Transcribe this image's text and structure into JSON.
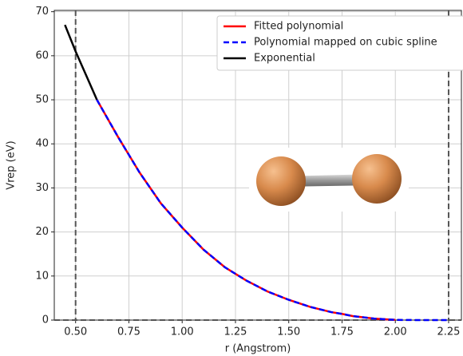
{
  "chart_data": {
    "type": "line",
    "x_label": "r (Angstrom)",
    "y_label": "Vrep (eV)",
    "xlim": [
      0.4,
      2.31
    ],
    "ylim": [
      0,
      70.3
    ],
    "xticks": [
      {
        "value": 0.5,
        "label": "0.50"
      },
      {
        "value": 0.75,
        "label": "0.75"
      },
      {
        "value": 1.0,
        "label": "1.00"
      },
      {
        "value": 1.25,
        "label": "1.25"
      },
      {
        "value": 1.5,
        "label": "1.50"
      },
      {
        "value": 1.75,
        "label": "1.75"
      },
      {
        "value": 2.0,
        "label": "2.00"
      },
      {
        "value": 2.25,
        "label": "2.25"
      }
    ],
    "yticks": [
      0,
      10,
      20,
      30,
      40,
      50,
      60,
      70
    ],
    "grid": true,
    "legend": "upper right",
    "vlines": [
      0.5,
      2.25
    ],
    "hlines": [
      0
    ],
    "series": [
      {
        "name": "Fitted polynomial",
        "color": "#ff0000",
        "style": "solid",
        "x": [
          0.6,
          0.7,
          0.75,
          0.8,
          0.9,
          1.0,
          1.1,
          1.2,
          1.25,
          1.3,
          1.4,
          1.5,
          1.6,
          1.7,
          1.75,
          1.8,
          1.9,
          2.0
        ],
        "values": [
          50,
          41.5,
          37.5,
          33.5,
          26.5,
          21,
          16,
          12,
          10.5,
          9,
          6.5,
          4.6,
          3,
          1.8,
          1.4,
          0.9,
          0.35,
          0.05
        ]
      },
      {
        "name": "Polynomial mapped on cubic spline",
        "color": "#0000ff",
        "style": "dashed",
        "x": [
          0.6,
          0.7,
          0.75,
          0.8,
          0.9,
          1.0,
          1.1,
          1.2,
          1.25,
          1.3,
          1.4,
          1.5,
          1.6,
          1.7,
          1.75,
          1.8,
          1.9,
          2.0,
          2.1,
          2.25
        ],
        "values": [
          50,
          41.5,
          37.5,
          33.5,
          26.5,
          21,
          16,
          12,
          10.5,
          9,
          6.5,
          4.6,
          3,
          1.8,
          1.4,
          0.9,
          0.35,
          0.05,
          0,
          0
        ]
      },
      {
        "name": "Exponential",
        "color": "#000000",
        "style": "solid",
        "x": [
          0.45,
          0.5,
          0.55,
          0.6
        ],
        "values": [
          67,
          61,
          55.5,
          50
        ]
      }
    ]
  }
}
